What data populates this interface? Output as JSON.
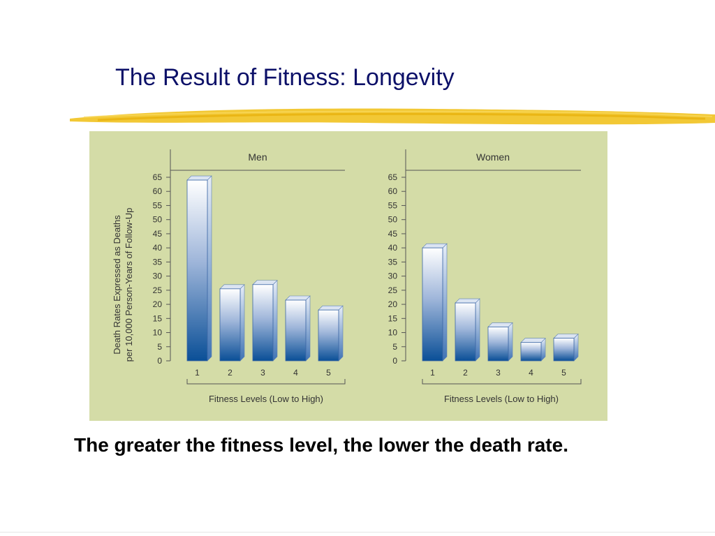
{
  "slide": {
    "title": "The Result of Fitness: Longevity",
    "caption": "The greater the fitness level, the lower the death rate."
  },
  "colors": {
    "title": "#0c1068",
    "highlight": "#f1c21f",
    "panel": "#d4dca7",
    "bar_dark": "#0a4f97",
    "bar_light": "#ffffff"
  },
  "chart_data": [
    {
      "type": "bar",
      "title": "Men",
      "categories": [
        "1",
        "2",
        "3",
        "4",
        "5"
      ],
      "values": [
        64,
        25.5,
        27,
        21.5,
        18
      ],
      "ylabel": "Death Rates Expressed as Deaths per 10,000 Person-Years of Follow-Up",
      "ylabel_lines": [
        "Death Rates Expressed as Deaths",
        "per 10,000 Person-Years of Follow-Up"
      ],
      "xlabel": "Fitness Levels (Low to High)",
      "yticks": [
        "0",
        "5",
        "10",
        "15",
        "20",
        "25",
        "30",
        "35",
        "40",
        "45",
        "50",
        "55",
        "60",
        "65"
      ],
      "ylim": [
        0,
        65
      ],
      "grid": false
    },
    {
      "type": "bar",
      "title": "Women",
      "categories": [
        "1",
        "2",
        "3",
        "4",
        "5"
      ],
      "values": [
        40,
        20.5,
        12,
        6.5,
        8
      ],
      "xlabel": "Fitness Levels (Low to High)",
      "yticks": [
        "0",
        "5",
        "10",
        "15",
        "20",
        "25",
        "30",
        "35",
        "40",
        "45",
        "50",
        "55",
        "60",
        "65"
      ],
      "ylim": [
        0,
        65
      ],
      "grid": false
    }
  ]
}
